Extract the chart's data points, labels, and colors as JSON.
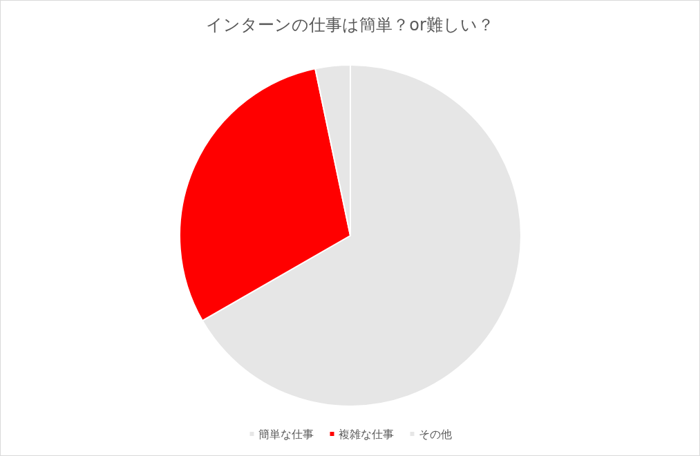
{
  "chart_data": {
    "type": "pie",
    "title": "インターンの仕事は簡単？or難しい？",
    "categories": [
      "簡単な仕事",
      "複雑な仕事",
      "その他"
    ],
    "values": [
      66.7,
      30.0,
      3.3
    ],
    "colors": [
      "#e6e6e6",
      "#ff0000",
      "#e6e6e6"
    ],
    "legend": "bottom"
  }
}
